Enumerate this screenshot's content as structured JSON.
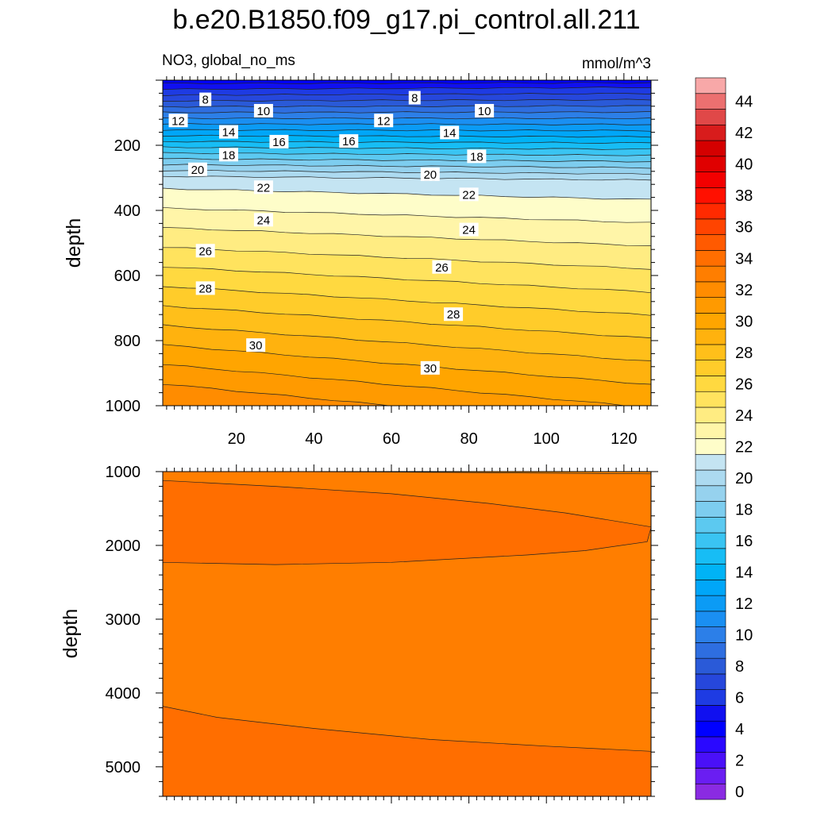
{
  "title": "b.e20.B1850.f09_g17.pi_control.all.211",
  "chart_data": [
    {
      "type": "contour",
      "panel": "upper",
      "left_label": "NO3, global_no_ms",
      "right_label": "mmol/m^3",
      "xlabel": "",
      "ylabel": "depth",
      "xlim": [
        1,
        127
      ],
      "ylim": [
        1000,
        0
      ],
      "x_ticks": [
        "20",
        "40",
        "60",
        "80",
        "100",
        "120"
      ],
      "y_ticks": [
        "200",
        "400",
        "600",
        "800",
        "1000"
      ],
      "contour_levels": [
        5,
        6,
        7,
        8,
        9,
        10,
        11,
        12,
        13,
        14,
        15,
        16,
        17,
        18,
        19,
        20,
        21,
        22,
        23,
        24,
        25,
        26,
        27,
        28,
        29,
        30,
        31,
        32
      ],
      "contour_labels": [
        {
          "value": "8",
          "x": 12,
          "depth": 60
        },
        {
          "value": "8",
          "x": 66,
          "depth": 55
        },
        {
          "value": "10",
          "x": 27,
          "depth": 95
        },
        {
          "value": "10",
          "x": 84,
          "depth": 95
        },
        {
          "value": "12",
          "x": 5,
          "depth": 125
        },
        {
          "value": "12",
          "x": 58,
          "depth": 125
        },
        {
          "value": "14",
          "x": 18,
          "depth": 160
        },
        {
          "value": "14",
          "x": 75,
          "depth": 162
        },
        {
          "value": "16",
          "x": 31,
          "depth": 190
        },
        {
          "value": "16",
          "x": 49,
          "depth": 188
        },
        {
          "value": "18",
          "x": 18,
          "depth": 230
        },
        {
          "value": "18",
          "x": 82,
          "depth": 235
        },
        {
          "value": "20",
          "x": 10,
          "depth": 275
        },
        {
          "value": "20",
          "x": 70,
          "depth": 290
        },
        {
          "value": "22",
          "x": 27,
          "depth": 330
        },
        {
          "value": "22",
          "x": 80,
          "depth": 352
        },
        {
          "value": "24",
          "x": 27,
          "depth": 430
        },
        {
          "value": "24",
          "x": 80,
          "depth": 460
        },
        {
          "value": "26",
          "x": 12,
          "depth": 525
        },
        {
          "value": "26",
          "x": 73,
          "depth": 575
        },
        {
          "value": "28",
          "x": 12,
          "depth": 640
        },
        {
          "value": "28",
          "x": 76,
          "depth": 720
        },
        {
          "value": "30",
          "x": 25,
          "depth": 815
        },
        {
          "value": "30",
          "x": 70,
          "depth": 885
        }
      ]
    },
    {
      "type": "contour",
      "panel": "lower",
      "xlabel": "",
      "ylabel": "depth",
      "xlim": [
        1,
        127
      ],
      "ylim": [
        5400,
        1000
      ],
      "y_ticks": [
        "1000",
        "2000",
        "3000",
        "4000",
        "5000"
      ],
      "contour_levels": [
        32,
        33,
        34
      ]
    },
    {
      "type": "colorbar",
      "labels": [
        "0",
        "2",
        "4",
        "6",
        "8",
        "10",
        "12",
        "14",
        "16",
        "18",
        "20",
        "22",
        "24",
        "26",
        "28",
        "30",
        "32",
        "34",
        "36",
        "38",
        "40",
        "42",
        "44"
      ],
      "levels": [
        0,
        1,
        2,
        3,
        4,
        5,
        6,
        7,
        8,
        9,
        10,
        11,
        12,
        13,
        14,
        15,
        16,
        17,
        18,
        19,
        20,
        21,
        22,
        23,
        24,
        25,
        26,
        27,
        28,
        29,
        30,
        31,
        32,
        33,
        34,
        35,
        36,
        37,
        38,
        39,
        40,
        41,
        42,
        43,
        44,
        45
      ],
      "colors": [
        "#8a2be2",
        "#6a1ef2",
        "#4a10f8",
        "#2a08ff",
        "#0000ff",
        "#1010f0",
        "#1e3be3",
        "#2647dc",
        "#2a5ad8",
        "#2e6ee0",
        "#2c7fe8",
        "#1a8ff2",
        "#0b9bf5",
        "#00a6f8",
        "#00b3f6",
        "#17bdf5",
        "#3ac4f2",
        "#5cc9f0",
        "#7dcdef",
        "#96d2ee",
        "#acdaf0",
        "#c4e4f2",
        "#fefdc9",
        "#fff5a8",
        "#ffec82",
        "#ffe35e",
        "#ffd940",
        "#ffcc2a",
        "#ffbf1a",
        "#ffb20e",
        "#ffa500",
        "#ff9a00",
        "#ff8c00",
        "#ff7e00",
        "#ff6e00",
        "#ff5a00",
        "#ff4400",
        "#ff2a00",
        "#ff1000",
        "#f20000",
        "#e00000",
        "#d40000",
        "#d81c1c",
        "#e04848",
        "#ec7070",
        "#f8a8a8"
      ]
    }
  ]
}
